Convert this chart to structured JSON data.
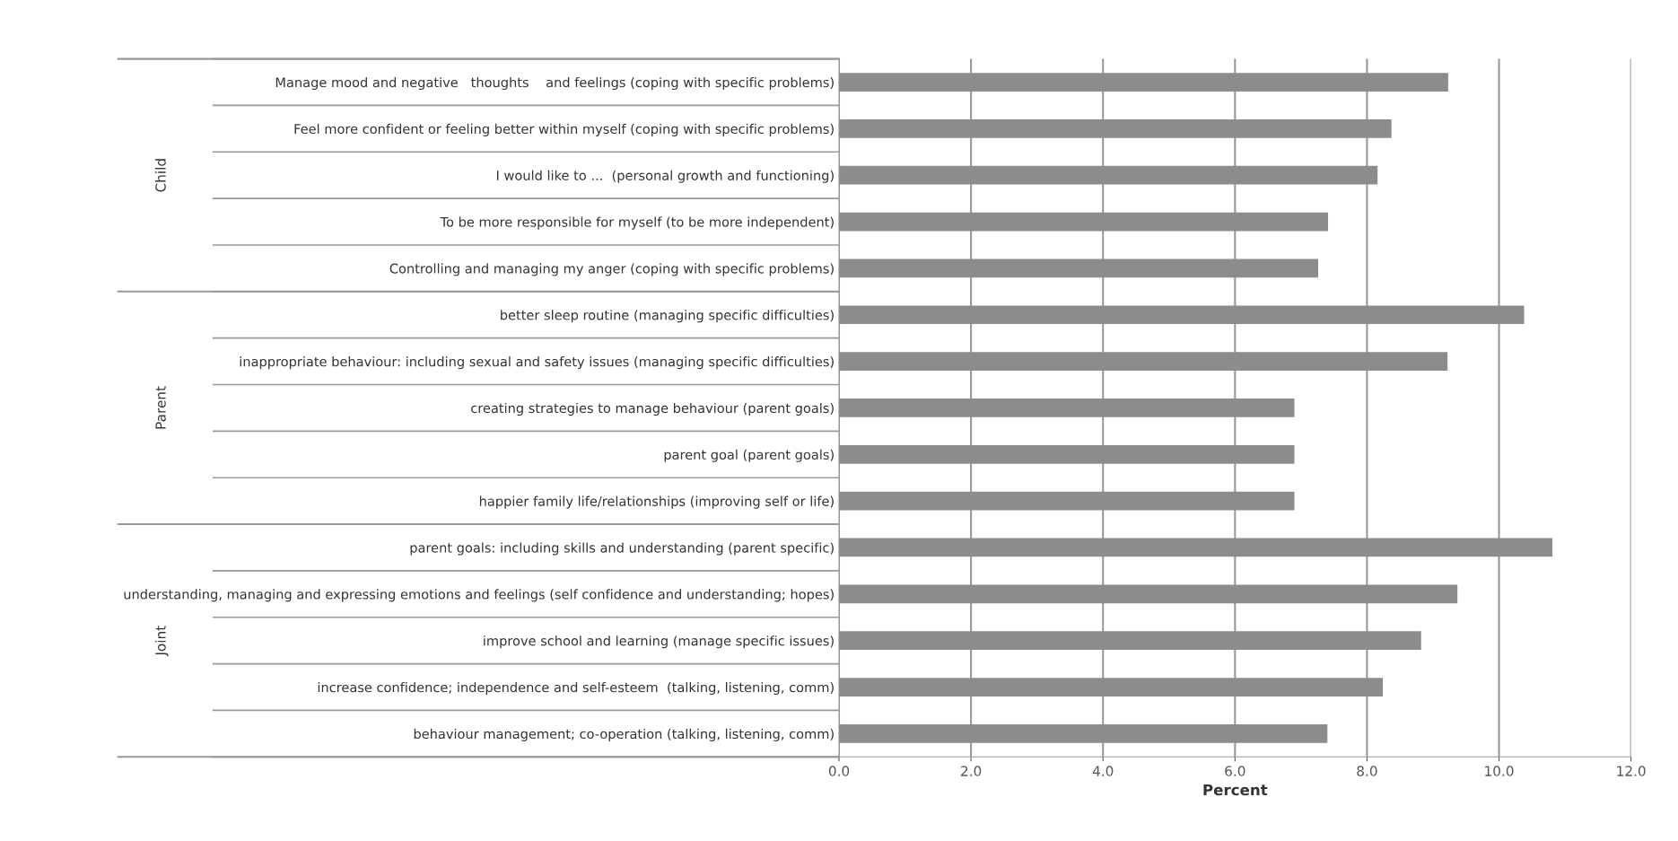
{
  "chart_data": {
    "type": "bar",
    "orientation": "horizontal",
    "xlabel": "Percent",
    "categories": [
      "Manage mood and negative   thoughts    and feelings (coping with specific problems)",
      "Feel more confident or feeling better within myself (coping with specific problems)",
      "I would like to ...  (personal growth and functioning)",
      "To be more responsible for myself (to be more independent)",
      "Controlling and managing my anger (coping with specific problems)",
      "better sleep routine (managing specific difficulties)",
      "inappropriate behaviour: including sexual and safety issues (managing specific difficulties)",
      "creating strategies to manage behaviour (parent goals)",
      "parent goal (parent goals)",
      "happier family life/relationships (improving self or life)",
      "parent goals: including skills and understanding (parent specific)",
      "understanding, managing and expressing emotions and feelings (self confidence and understanding; hopes)",
      "improve school and learning (manage specific issues)",
      "increase confidence; independence and self-esteem  (talking, listening, comm)",
      "behaviour management; co-operation (talking, listening, comm)"
    ],
    "values": [
      9.23,
      8.37,
      8.16,
      7.41,
      7.26,
      10.38,
      9.22,
      6.9,
      6.9,
      6.9,
      10.81,
      9.37,
      8.82,
      8.24,
      7.4
    ],
    "color": "#8c8c8c",
    "xlim": [
      0,
      12
    ],
    "xticks": [
      {
        "value": 0,
        "label": "0.0"
      },
      {
        "value": 2,
        "label": "2.0"
      },
      {
        "value": 4,
        "label": "4.0"
      },
      {
        "value": 6,
        "label": "6.0"
      },
      {
        "value": 8,
        "label": "8.0"
      },
      {
        "value": 10,
        "label": "10.0"
      },
      {
        "value": 12,
        "label": "12.0"
      }
    ],
    "grid": "x",
    "annotations": [
      "Child",
      "Parent",
      "Joint"
    ]
  }
}
